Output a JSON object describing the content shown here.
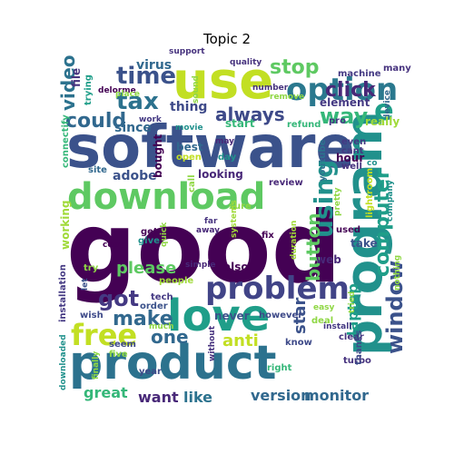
{
  "title": "Topic 2",
  "palette": "viridis",
  "words": [
    {
      "text": "good",
      "color": "#440154"
    },
    {
      "text": "software",
      "color": "#3b528b"
    },
    {
      "text": "product",
      "color": "#2c728e"
    },
    {
      "text": "program",
      "color": "#21918c"
    },
    {
      "text": "use",
      "color": "#c2df23"
    },
    {
      "text": "love",
      "color": "#1f9e89"
    },
    {
      "text": "download",
      "color": "#5ec962"
    },
    {
      "text": "problem",
      "color": "#414487"
    },
    {
      "text": "option",
      "color": "#2a788e"
    },
    {
      "text": "time",
      "color": "#3b528b"
    },
    {
      "text": "tax",
      "color": "#2c728e"
    },
    {
      "text": "using",
      "color": "#21918c"
    },
    {
      "text": "free",
      "color": "#c2df23"
    },
    {
      "text": "window",
      "color": "#3b528b"
    },
    {
      "text": "computer",
      "color": "#1f9e89"
    },
    {
      "text": "stop",
      "color": "#5ec962"
    },
    {
      "text": "click",
      "color": "#482878"
    },
    {
      "text": "always",
      "color": "#3e4a89"
    },
    {
      "text": "video",
      "color": "#2c728e"
    },
    {
      "text": "could",
      "color": "#31688e"
    },
    {
      "text": "way",
      "color": "#35b779"
    },
    {
      "text": "got",
      "color": "#443983"
    },
    {
      "text": "make",
      "color": "#31688e"
    },
    {
      "text": "button",
      "color": "#5ec962"
    },
    {
      "text": "one",
      "color": "#31688e"
    },
    {
      "text": "please",
      "color": "#5ec962"
    },
    {
      "text": "anti",
      "color": "#c2df23"
    },
    {
      "text": "star",
      "color": "#3b528b"
    },
    {
      "text": "laptop",
      "color": "#1f9e89"
    },
    {
      "text": "monitor",
      "color": "#31688e"
    },
    {
      "text": "version",
      "color": "#31688e"
    },
    {
      "text": "like",
      "color": "#2c728e"
    },
    {
      "text": "want",
      "color": "#482878"
    },
    {
      "text": "great",
      "color": "#35b779"
    },
    {
      "text": "virus",
      "color": "#31688e"
    },
    {
      "text": "since",
      "color": "#31688e"
    },
    {
      "text": "thing",
      "color": "#3e4a89"
    },
    {
      "text": "e",
      "color": "#1f9e89"
    },
    {
      "text": "support",
      "color": "#46327e"
    },
    {
      "text": "quality",
      "color": "#46327e"
    },
    {
      "text": "file",
      "color": "#46327e"
    },
    {
      "text": "trying",
      "color": "#1f9e89"
    },
    {
      "text": "delorme",
      "color": "#440154"
    },
    {
      "text": "sound",
      "color": "#8fd744"
    },
    {
      "text": "place",
      "color": "#8fd744"
    },
    {
      "text": "number",
      "color": "#46327e"
    },
    {
      "text": "remove",
      "color": "#8fd744"
    },
    {
      "text": "element",
      "color": "#443983"
    },
    {
      "text": "machine",
      "color": "#443983"
    },
    {
      "text": "pro",
      "color": "#443983"
    },
    {
      "text": "many",
      "color": "#46327e"
    },
    {
      "text": "device",
      "color": "#31688e"
    },
    {
      "text": "really",
      "color": "#a0da39"
    },
    {
      "text": "even",
      "color": "#443983"
    },
    {
      "text": "cant",
      "color": "#443983"
    },
    {
      "text": "well",
      "color": "#46327e"
    },
    {
      "text": "hour",
      "color": "#440154"
    },
    {
      "text": "refund",
      "color": "#35b779"
    },
    {
      "text": "start",
      "color": "#35b779"
    },
    {
      "text": "work",
      "color": "#443983"
    },
    {
      "text": "movie",
      "color": "#21918c"
    },
    {
      "text": "best",
      "color": "#31688e"
    },
    {
      "text": "open",
      "color": "#c2df23"
    },
    {
      "text": "day",
      "color": "#21918c"
    },
    {
      "text": "may",
      "color": "#482878"
    },
    {
      "text": "co",
      "color": "#21918c"
    },
    {
      "text": "youtube",
      "color": "#2c728e"
    },
    {
      "text": "lightroom",
      "color": "#c2df23"
    },
    {
      "text": "company",
      "color": "#21918c"
    },
    {
      "text": "connectify",
      "color": "#35b779"
    },
    {
      "text": "site",
      "color": "#31688e"
    },
    {
      "text": "adobe",
      "color": "#3b528b"
    },
    {
      "text": "bought",
      "color": "#440154"
    },
    {
      "text": "looking",
      "color": "#482878"
    },
    {
      "text": "call",
      "color": "#8fd744"
    },
    {
      "text": "review",
      "color": "#482878"
    },
    {
      "text": "sure",
      "color": "#8fd744"
    },
    {
      "text": "far",
      "color": "#46327e"
    },
    {
      "text": "away",
      "color": "#482878"
    },
    {
      "text": "pretty",
      "color": "#8fd744"
    },
    {
      "text": "used",
      "color": "#440154"
    },
    {
      "text": "take",
      "color": "#3b528b"
    },
    {
      "text": "working",
      "color": "#a0da39"
    },
    {
      "text": "get",
      "color": "#440154"
    },
    {
      "text": "give",
      "color": "#21918c"
    },
    {
      "text": "copy",
      "color": "#440154"
    },
    {
      "text": "quick",
      "color": "#8fd744"
    },
    {
      "text": "systems",
      "color": "#a0da39"
    },
    {
      "text": "fix",
      "color": "#440154"
    },
    {
      "text": "duration",
      "color": "#a0da39"
    },
    {
      "text": "web",
      "color": "#482878"
    },
    {
      "text": "try",
      "color": "#8fd744"
    },
    {
      "text": "simple",
      "color": "#482878"
    },
    {
      "text": "also",
      "color": "#440154"
    },
    {
      "text": "let",
      "color": "#3b528b"
    },
    {
      "text": "people",
      "color": "#a0da39"
    },
    {
      "text": "tech",
      "color": "#443983"
    },
    {
      "text": "order",
      "color": "#3b528b"
    },
    {
      "text": "never",
      "color": "#3b528b"
    },
    {
      "text": "however",
      "color": "#3e4a89"
    },
    {
      "text": "deal",
      "color": "#8fd744"
    },
    {
      "text": "installation",
      "color": "#443983"
    },
    {
      "text": "wish",
      "color": "#3e4a89"
    },
    {
      "text": "much",
      "color": "#8fd744"
    },
    {
      "text": "easy",
      "color": "#8fd744"
    },
    {
      "text": "tried",
      "color": "#8fd744"
    },
    {
      "text": "nothing",
      "color": "#8fd744"
    },
    {
      "text": "install",
      "color": "#443983"
    },
    {
      "text": "clear",
      "color": "#46327e"
    },
    {
      "text": "turbo",
      "color": "#46327e"
    },
    {
      "text": "thanks",
      "color": "#3e4a89"
    },
    {
      "text": "seem",
      "color": "#3e4a89"
    },
    {
      "text": "know",
      "color": "#3e4a89"
    },
    {
      "text": "five",
      "color": "#8fd744"
    },
    {
      "text": "finally",
      "color": "#8fd744"
    },
    {
      "text": "without",
      "color": "#46327e"
    },
    {
      "text": "right",
      "color": "#35b779"
    },
    {
      "text": "downloaded",
      "color": "#21918c"
    },
    {
      "text": "year",
      "color": "#3e4a89"
    }
  ]
}
